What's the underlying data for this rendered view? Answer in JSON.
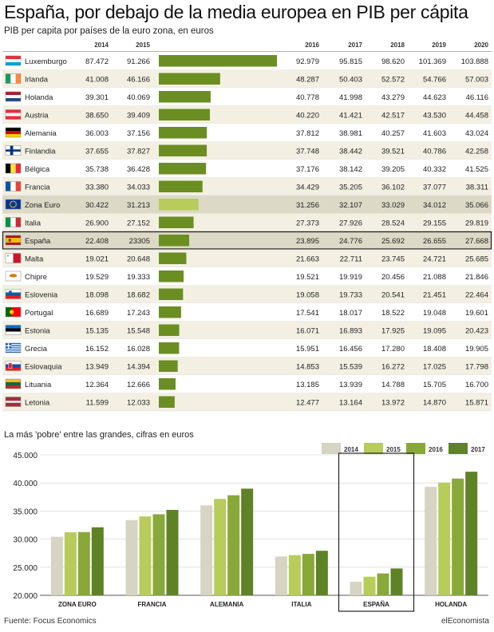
{
  "title": "España, por debajo de la media europea en PIB per cápita",
  "subtitle": "PIB per capita por países de la euro zona, en euros",
  "colors": {
    "bar": "#6b8e23",
    "highlight_bar": "#b7cc5a",
    "row_alt": "#f3f0e3",
    "highlight_row": "#dcd9c6",
    "grid": "#cfcfcf"
  },
  "chart_data": [
    {
      "type": "table",
      "columns": [
        "",
        "2014",
        "2015",
        "",
        "2016",
        "2017",
        "2018",
        "2019",
        "2020"
      ],
      "bar_metric_year": "2016",
      "highlight_rows": [
        "Zona Euro",
        "España"
      ],
      "rows": [
        {
          "country": "Luxemburgo",
          "flag": "luxembourg-flag",
          "values": [
            "87.472",
            "91.266",
            "92.979",
            "95.815",
            "98.620",
            "101.369",
            "103.888"
          ],
          "bar": 92979
        },
        {
          "country": "Irlanda",
          "flag": "ireland-flag",
          "values": [
            "41.008",
            "46.166",
            "48.287",
            "50.403",
            "52.572",
            "54.766",
            "57.003"
          ],
          "bar": 48287
        },
        {
          "country": "Holanda",
          "flag": "netherlands-flag",
          "values": [
            "39.301",
            "40.069",
            "40.778",
            "41.998",
            "43.279",
            "44.623",
            "46.116"
          ],
          "bar": 40778
        },
        {
          "country": "Austria",
          "flag": "austria-flag",
          "values": [
            "38.650",
            "39.409",
            "40.220",
            "41.421",
            "42.517",
            "43.530",
            "44.458"
          ],
          "bar": 40220
        },
        {
          "country": "Alemania",
          "flag": "germany-flag",
          "values": [
            "36.003",
            "37.156",
            "37.812",
            "38.981",
            "40.257",
            "41.603",
            "43.024"
          ],
          "bar": 37812
        },
        {
          "country": "Finlandia",
          "flag": "finland-flag",
          "values": [
            "37.655",
            "37.827",
            "37.748",
            "38.442",
            "39.521",
            "40.786",
            "42.258"
          ],
          "bar": 37748
        },
        {
          "country": "Bélgica",
          "flag": "belgium-flag",
          "values": [
            "35.738",
            "36.428",
            "37.176",
            "38.142",
            "39.205",
            "40.332",
            "41.525"
          ],
          "bar": 37176
        },
        {
          "country": "Francia",
          "flag": "france-flag",
          "values": [
            "33.380",
            "34.033",
            "34.429",
            "35.205",
            "36.102",
            "37.077",
            "38.311"
          ],
          "bar": 34429
        },
        {
          "country": "Zona Euro",
          "flag": "eu-flag",
          "values": [
            "30.422",
            "31.213",
            "31.256",
            "32.107",
            "33.029",
            "34.012",
            "35.066"
          ],
          "bar": 31256
        },
        {
          "country": "Italia",
          "flag": "italy-flag",
          "values": [
            "26.900",
            "27.152",
            "27.373",
            "27.926",
            "28.524",
            "29.155",
            "29.819"
          ],
          "bar": 27373
        },
        {
          "country": "España",
          "flag": "spain-flag",
          "values": [
            "22.408",
            "23305",
            "23.895",
            "24.776",
            "25.692",
            "26.655",
            "27.668"
          ],
          "bar": 23895
        },
        {
          "country": "Malta",
          "flag": "malta-flag",
          "values": [
            "19.021",
            "20.648",
            "21.663",
            "22.711",
            "23.745",
            "24.721",
            "25.685"
          ],
          "bar": 21663
        },
        {
          "country": "Chipre",
          "flag": "cyprus-flag",
          "values": [
            "19.529",
            "19.333",
            "19.521",
            "19.919",
            "20.456",
            "21.088",
            "21.846"
          ],
          "bar": 19521
        },
        {
          "country": "Eslovenia",
          "flag": "slovenia-flag",
          "values": [
            "18.098",
            "18.682",
            "19.058",
            "19.733",
            "20.541",
            "21.451",
            "22.464"
          ],
          "bar": 19058
        },
        {
          "country": "Portugal",
          "flag": "portugal-flag",
          "values": [
            "16.689",
            "17.243",
            "17.541",
            "18.017",
            "18.522",
            "19.048",
            "19.601"
          ],
          "bar": 17541
        },
        {
          "country": "Estonia",
          "flag": "estonia-flag",
          "values": [
            "15.135",
            "15.548",
            "16.071",
            "16.893",
            "17.925",
            "19.095",
            "20.423"
          ],
          "bar": 16071
        },
        {
          "country": "Grecia",
          "flag": "greece-flag",
          "values": [
            "16.152",
            "16.028",
            "15.951",
            "16.456",
            "17.280",
            "18.408",
            "19.905"
          ],
          "bar": 15951
        },
        {
          "country": "Eslovaquia",
          "flag": "slovakia-flag",
          "values": [
            "13.949",
            "14.394",
            "14.853",
            "15.539",
            "16.272",
            "17.025",
            "17.798"
          ],
          "bar": 14853
        },
        {
          "country": "Lituania",
          "flag": "lithuania-flag",
          "values": [
            "12.364",
            "12.666",
            "13.185",
            "13.939",
            "14.788",
            "15.705",
            "16.700"
          ],
          "bar": 13185
        },
        {
          "country": "Letonia",
          "flag": "latvia-flag",
          "values": [
            "11.599",
            "12.033",
            "12.477",
            "13.164",
            "13.972",
            "14.870",
            "15.871"
          ],
          "bar": 12477
        }
      ]
    },
    {
      "type": "bar",
      "title": "La más 'pobre' entre las grandes, cifras en euros",
      "categories": [
        "ZONA EURO",
        "FRANCIA",
        "ALEMANIA",
        "ITALIA",
        "ESPAÑA",
        "HOLANDA"
      ],
      "highlight_category": "ESPAÑA",
      "ylim": [
        20000,
        45000
      ],
      "yticks": [
        20000,
        25000,
        30000,
        35000,
        40000,
        45000
      ],
      "ytick_labels": [
        "20.000",
        "25.000",
        "30.000",
        "35.000",
        "40.000",
        "45.000"
      ],
      "series": [
        {
          "name": "2014",
          "color": "#d6d4c2",
          "values": [
            30422,
            33380,
            36003,
            26900,
            22408,
            39301
          ]
        },
        {
          "name": "2015",
          "color": "#b7cc5a",
          "values": [
            31213,
            34033,
            37156,
            27152,
            23305,
            40069
          ]
        },
        {
          "name": "2016",
          "color": "#89a83a",
          "values": [
            31256,
            34429,
            37812,
            27373,
            23895,
            40778
          ]
        },
        {
          "name": "2017",
          "color": "#5f8226",
          "values": [
            32107,
            35205,
            38981,
            27926,
            24776,
            41998
          ]
        }
      ]
    }
  ],
  "source": "Fuente: Focus Economics",
  "brand": "elEconomista"
}
